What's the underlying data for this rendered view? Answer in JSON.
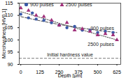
{
  "chart_data": {
    "type": "scatter",
    "x_label": "Depth [μm]",
    "y_label": "Microhardness [HV0.1]",
    "xlim": [
      -10,
      650
    ],
    "xticks": [
      0,
      125,
      250,
      375,
      500,
      625
    ],
    "ylim": [
      90,
      115
    ],
    "yticks": [
      90,
      95,
      100,
      105,
      110,
      115
    ],
    "grid": false,
    "legend": "top",
    "series": [
      {
        "name": "900 pulses",
        "type": "scatter",
        "marker": "circle",
        "color": "#3a5aa8",
        "x": [
          0,
          50,
          75,
          100,
          150,
          200,
          250,
          300,
          350,
          400,
          450,
          500,
          550,
          600
        ],
        "values": [
          110.5,
          109,
          111,
          108.5,
          108,
          107,
          106,
          105,
          105.5,
          104,
          104,
          103,
          103.5,
          103
        ]
      },
      {
        "name": "2500 pulses",
        "type": "scatter",
        "marker": "triangle",
        "color": "#a0307a",
        "x": [
          0,
          50,
          100,
          150,
          200,
          250,
          300,
          350,
          400,
          450,
          500,
          550,
          600,
          625
        ],
        "values": [
          113,
          112,
          110,
          109.5,
          108,
          106,
          107,
          104,
          104.5,
          103.5,
          102,
          102.5,
          102,
          100
        ]
      }
    ],
    "trend_lines": [
      {
        "label": "900 pulses",
        "line_style": "dashed",
        "color": "#333333",
        "x": [
          0,
          125,
          250,
          375,
          500,
          625
        ],
        "values": [
          109.5,
          107.8,
          106.3,
          105,
          103.9,
          103
        ]
      },
      {
        "label": "2500 pulses",
        "line_style": "dotted",
        "color": "#333333",
        "x": [
          0,
          125,
          250,
          375,
          500,
          625
        ],
        "values": [
          111.5,
          109.2,
          106.8,
          104.5,
          102.2,
          100
        ]
      }
    ],
    "reference_line": {
      "value": 92.5,
      "label": "Initial hardness value",
      "line_style": "dashed",
      "color": "#555555"
    }
  }
}
